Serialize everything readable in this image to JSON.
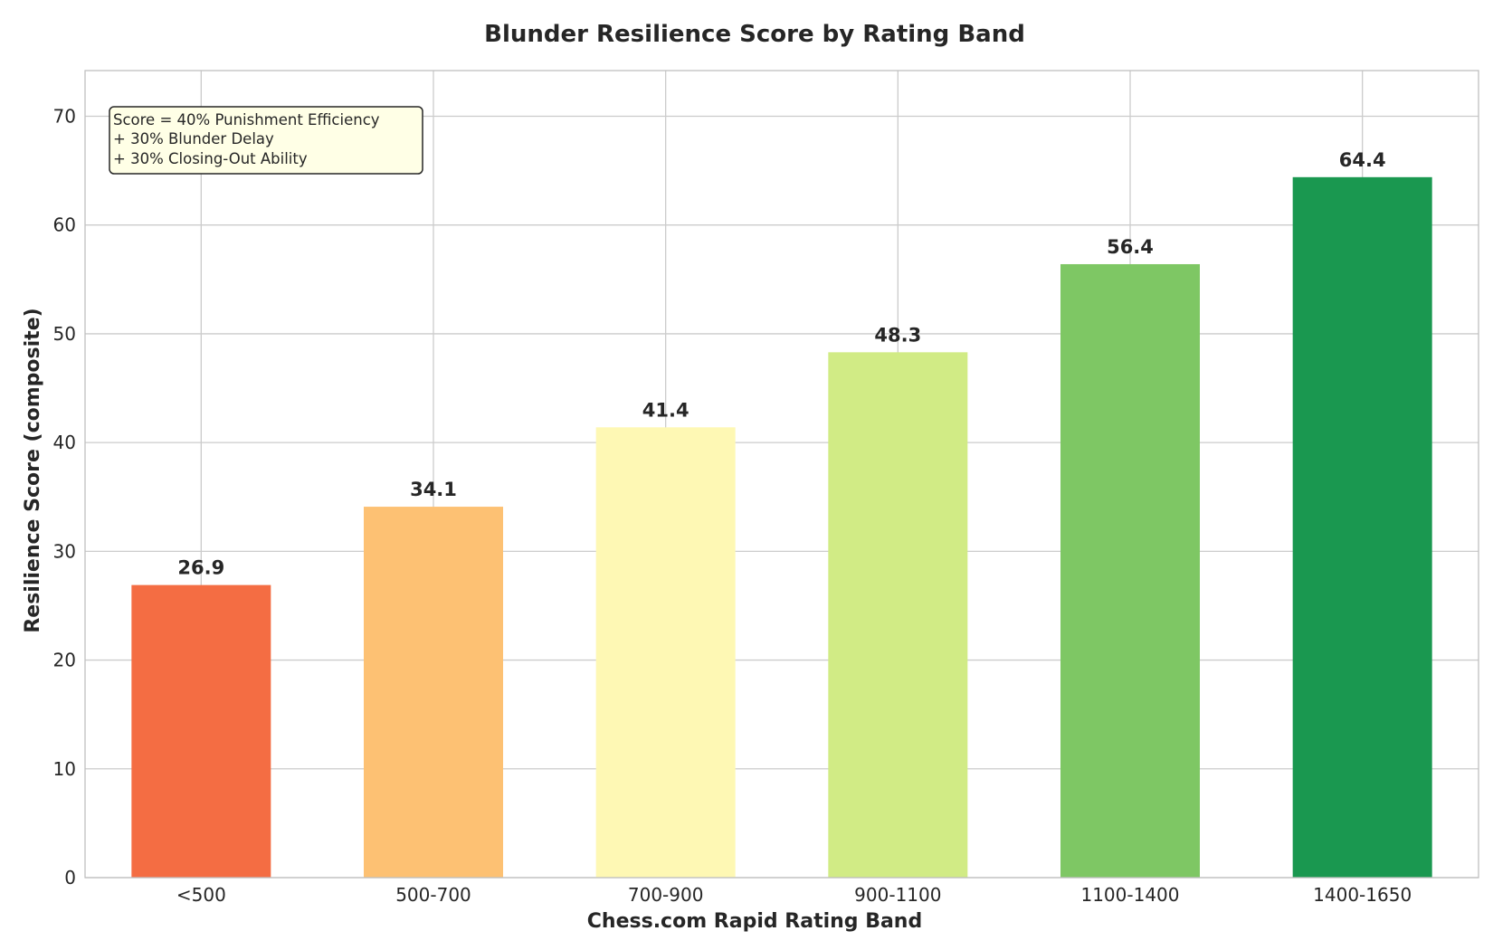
{
  "chart_data": {
    "type": "bar",
    "title": "Blunder Resilience Score by Rating Band",
    "xlabel": "Chess.com Rapid Rating Band",
    "ylabel": "Resilience Score (composite)",
    "categories": [
      "<500",
      "500-700",
      "700-900",
      "900-1100",
      "1100-1400",
      "1400-1650"
    ],
    "values": [
      26.9,
      34.1,
      41.4,
      48.3,
      56.4,
      64.4
    ],
    "value_labels": [
      "26.9",
      "34.1",
      "41.4",
      "48.3",
      "56.4",
      "64.4"
    ],
    "colors": [
      "#f46d43",
      "#fdc173",
      "#fef8b4",
      "#d1eb85",
      "#7ec764",
      "#1a9850"
    ],
    "ylim": [
      0,
      74.2
    ],
    "yticks": [
      0,
      10,
      20,
      30,
      40,
      50,
      60,
      70
    ],
    "grid": true,
    "annotation": {
      "lines": [
        "Score = 40% Punishment Efficiency",
        "+ 30% Blunder Delay",
        "+ 30% Closing-Out Ability"
      ],
      "placement": "top-left",
      "background": "#ffffe6"
    }
  }
}
